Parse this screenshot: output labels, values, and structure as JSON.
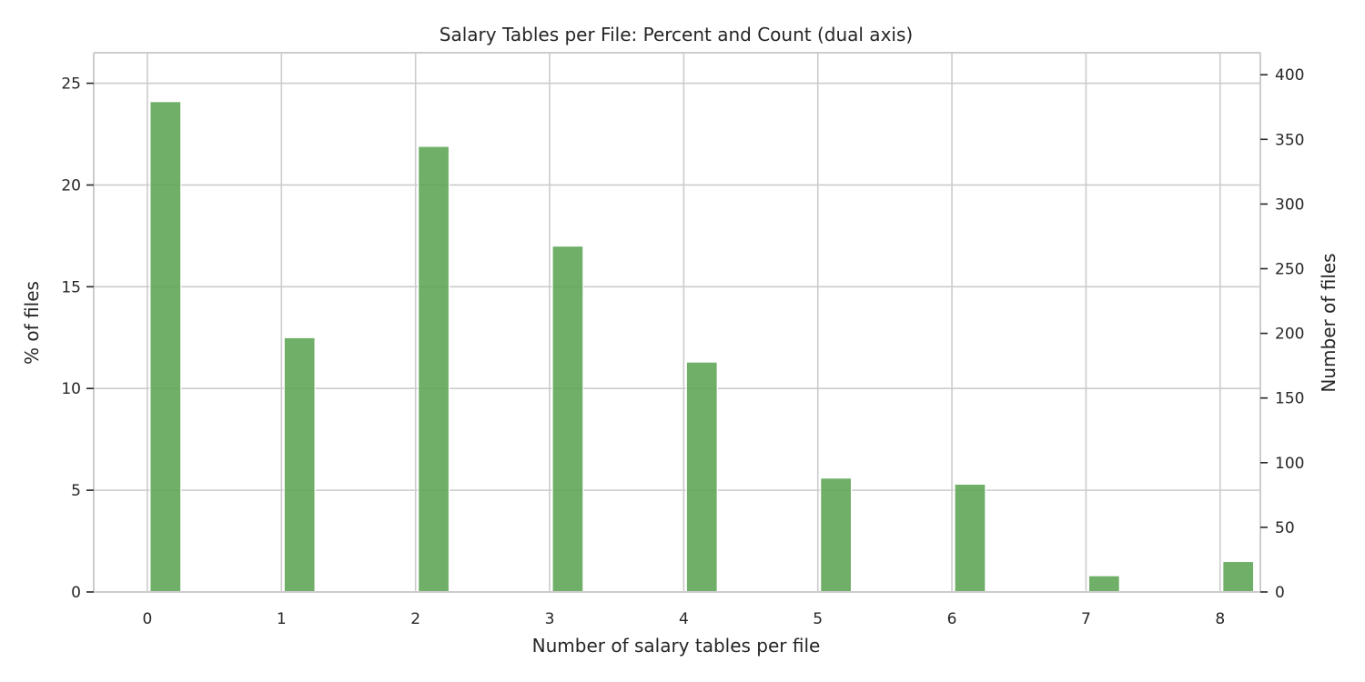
{
  "chart_data": {
    "type": "bar",
    "title": "Salary Tables per File: Percent and Count (dual axis)",
    "xlabel": "Number of salary tables per file",
    "ylabel_left": "% of files",
    "ylabel_right": "Number of files",
    "categories": [
      0,
      1,
      2,
      3,
      4,
      5,
      6,
      7,
      8
    ],
    "series": [
      {
        "values_percent": [
          24.1,
          12.5,
          21.9,
          17.0,
          11.3,
          5.6,
          5.3,
          0.8,
          1.5
        ],
        "values_count": [
          380,
          197,
          345,
          268,
          178,
          88,
          83,
          12,
          24
        ]
      }
    ],
    "x_ticks": [
      "0",
      "1",
      "2",
      "3",
      "4",
      "5",
      "6",
      "7",
      "8"
    ],
    "y_left_ticks": [
      "0",
      "5",
      "10",
      "15",
      "20",
      "25"
    ],
    "y_right_ticks": [
      "0",
      "50",
      "100",
      "150",
      "200",
      "250",
      "300",
      "350",
      "400"
    ],
    "xlim": [
      -0.4,
      8.3
    ],
    "ylim_left": [
      0,
      26.5
    ],
    "ylim_right": [
      0,
      417
    ],
    "grid": true,
    "bar_color": "#5ba453",
    "grid_color": "#cccccc",
    "axis_color": "#cccccc",
    "text_color": "#262626"
  }
}
